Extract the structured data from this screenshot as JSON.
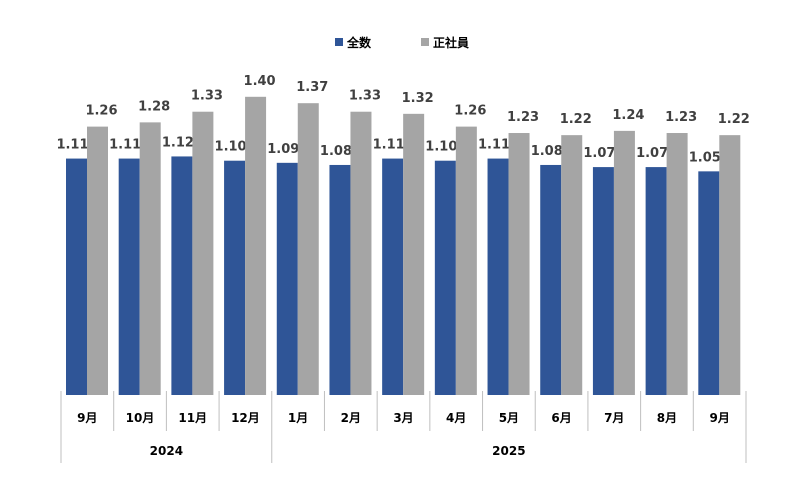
{
  "chart_data": {
    "type": "bar",
    "title": "",
    "xlabel": "",
    "ylabel": "",
    "ylim": [
      0,
      1.4
    ],
    "grid": false,
    "legend_position": "top-center",
    "categories": [
      "9月",
      "10月",
      "11月",
      "12月",
      "1月",
      "2月",
      "3月",
      "4月",
      "5月",
      "6月",
      "7月",
      "8月",
      "9月"
    ],
    "year_groups": [
      {
        "label": "2024",
        "count": 4
      },
      {
        "label": "2025",
        "count": 9
      }
    ],
    "series": [
      {
        "name": "全数",
        "color": "#2f5597",
        "values": [
          1.11,
          1.11,
          1.12,
          1.1,
          1.09,
          1.08,
          1.11,
          1.1,
          1.11,
          1.08,
          1.07,
          1.07,
          1.05
        ]
      },
      {
        "name": "正社員",
        "color": "#a5a5a5",
        "values": [
          1.26,
          1.28,
          1.33,
          1.4,
          1.37,
          1.33,
          1.32,
          1.26,
          1.23,
          1.22,
          1.24,
          1.23,
          1.22
        ]
      }
    ]
  }
}
